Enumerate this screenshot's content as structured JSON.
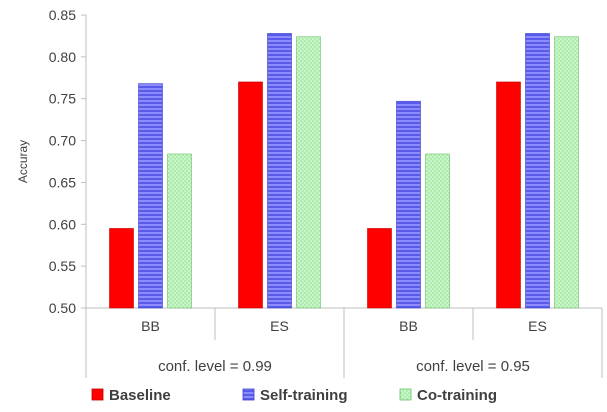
{
  "chart_data": {
    "type": "bar",
    "ylabel": "Accuray",
    "xlabel": "",
    "ylim": [
      0.5,
      0.85
    ],
    "yticks": [
      "0.50",
      "0.55",
      "0.60",
      "0.65",
      "0.70",
      "0.75",
      "0.80",
      "0.85"
    ],
    "grid": false,
    "legend_position": "bottom",
    "groups": [
      {
        "label": "conf. level = 0.99",
        "categories": [
          {
            "label": "BB",
            "values": [
              0.595,
              0.768,
              0.684
            ]
          },
          {
            "label": "ES",
            "values": [
              0.77,
              0.828,
              0.824
            ]
          }
        ]
      },
      {
        "label": "conf. level = 0.95",
        "categories": [
          {
            "label": "BB",
            "values": [
              0.595,
              0.747,
              0.684
            ]
          },
          {
            "label": "ES",
            "values": [
              0.77,
              0.828,
              0.824
            ]
          }
        ]
      }
    ],
    "series": [
      {
        "name": "Baseline",
        "color": "#ff0000",
        "pattern": "solid"
      },
      {
        "name": "Self-training",
        "color": "#7a7aff",
        "pattern": "horizontal-stripes"
      },
      {
        "name": "Co-training",
        "color": "#b7f5b7",
        "pattern": "dots"
      }
    ]
  }
}
